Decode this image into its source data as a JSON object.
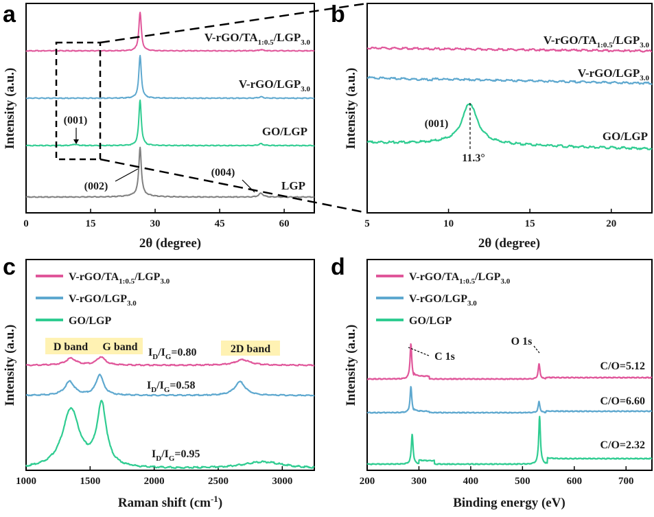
{
  "colors": {
    "pink": "#e0569a",
    "blue": "#5ea8cf",
    "green": "#2fcc91",
    "gray": "#808080",
    "band_highlight": "#fff2b3"
  },
  "chart_data": [
    {
      "panel": "a",
      "type": "line",
      "xlabel": "2θ (degree)",
      "ylabel": "Intensity (a.u.)",
      "xlim": [
        0,
        67
      ],
      "xticks": [
        "0",
        "15",
        "30",
        "45",
        "60"
      ],
      "series": [
        {
          "name": "V-rGO/TA1:0.5/LGP3.0",
          "name_main": "V-rGO/TA",
          "name_sub1": "1:0.5",
          "name_mid": "/LGP",
          "name_sub2": "3.0",
          "color": "pink",
          "peaks": [
            [
              26.5,
              1.0
            ],
            [
              54.6,
              0.03
            ]
          ]
        },
        {
          "name": "V-rGO/LGP3.0",
          "name_main": "V-rGO/LGP",
          "name_sub1": "3.0",
          "color": "blue",
          "peaks": [
            [
              26.5,
              1.0
            ],
            [
              54.6,
              0.03
            ]
          ]
        },
        {
          "name": "GO/LGP",
          "name_main": "GO/LGP",
          "color": "green",
          "peaks": [
            [
              11.3,
              0.03
            ],
            [
              26.5,
              1.0
            ],
            [
              54.6,
              0.04
            ]
          ]
        },
        {
          "name": "LGP",
          "name_main": "LGP",
          "color": "gray",
          "peaks": [
            [
              26.5,
              1.0
            ],
            [
              54.6,
              0.08
            ]
          ]
        }
      ],
      "annotations": [
        "(001)",
        "(002)",
        "(004)"
      ]
    },
    {
      "panel": "b",
      "type": "line",
      "xlabel": "2θ (degree)",
      "ylabel": "Intensity (a.u.)",
      "xlim": [
        5,
        22.5
      ],
      "xticks": [
        "5",
        "10",
        "15",
        "20"
      ],
      "series": [
        {
          "name": "V-rGO/TA1:0.5/LGP3.0",
          "color": "pink"
        },
        {
          "name": "V-rGO/LGP3.0",
          "color": "blue"
        },
        {
          "name": "GO/LGP",
          "color": "green",
          "peak_x": 11.3
        }
      ],
      "annotations": [
        "(001)",
        "11.3°"
      ]
    },
    {
      "panel": "c",
      "type": "line",
      "xlabel_main": "Raman shift (cm",
      "xlabel_sup": "-1",
      "xlabel_end": ")",
      "ylabel": "Intensity (a.u.)",
      "xlim": [
        1000,
        3250
      ],
      "xticks": [
        "1000",
        "1500",
        "2000",
        "2500",
        "3000"
      ],
      "legend": [
        "V-rGO/TA1:0.5/LGP3.0",
        "V-rGO/LGP3.0",
        "GO/LGP"
      ],
      "bands": [
        "D band",
        "G band",
        "2D band"
      ],
      "ratios": [
        {
          "series": "V-rGO/TA1:0.5/LGP3.0",
          "value": "=0.80"
        },
        {
          "series": "V-rGO/LGP3.0",
          "value": "=0.58"
        },
        {
          "series": "GO/LGP",
          "value": "=0.95"
        }
      ]
    },
    {
      "panel": "d",
      "type": "line",
      "xlabel": "Binding energy (eV)",
      "ylabel": "Intensity (a.u.)",
      "xlim": [
        200,
        750
      ],
      "xticks": [
        "200",
        "300",
        "400",
        "500",
        "600",
        "700"
      ],
      "legend": [
        "V-rGO/TA1:0.5/LGP3.0",
        "V-rGO/LGP3.0",
        "GO/LGP"
      ],
      "peaks": [
        "C 1s",
        "O 1s"
      ],
      "co_ratios": [
        "C/O=5.12",
        "C/O=6.60",
        "C/O=2.32"
      ]
    }
  ],
  "text": {
    "letter_a": "a",
    "letter_b": "b",
    "letter_c": "c",
    "letter_d": "d",
    "ID": "I",
    "sub_D": "D",
    "slash": "/I",
    "sub_G": "G"
  }
}
